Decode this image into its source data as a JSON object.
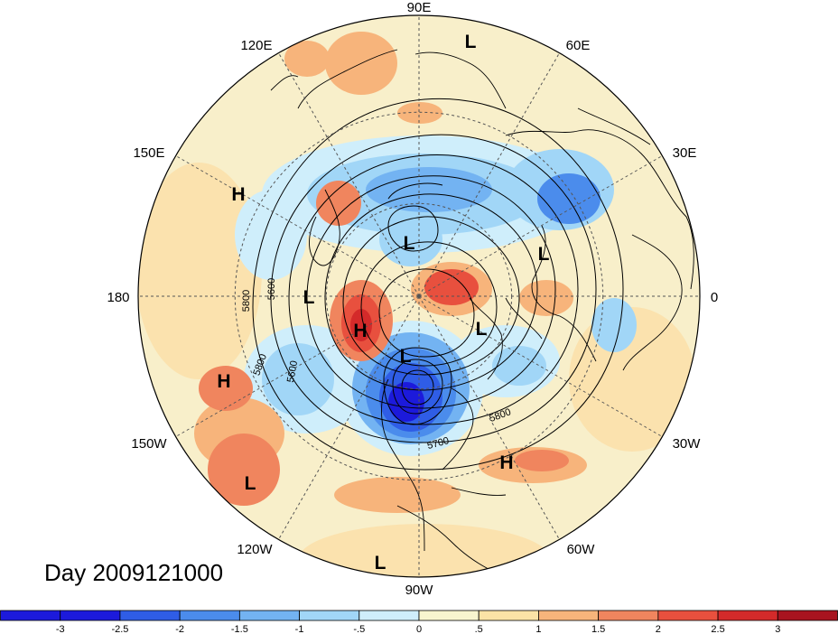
{
  "title": "Day 2009121000",
  "longitude_labels": [
    {
      "key": "90E",
      "text": "90E",
      "angle": 90
    },
    {
      "key": "120E",
      "text": "120E",
      "angle": 120
    },
    {
      "key": "60E",
      "text": "60E",
      "angle": 60
    },
    {
      "key": "150E",
      "text": "150E",
      "angle": 150
    },
    {
      "key": "30E",
      "text": "30E",
      "angle": 30
    },
    {
      "key": "180",
      "text": "180",
      "angle": 180
    },
    {
      "key": "0",
      "text": "0",
      "angle": 0
    },
    {
      "key": "150W",
      "text": "150W",
      "angle": 210
    },
    {
      "key": "30W",
      "text": "30W",
      "angle": 330
    },
    {
      "key": "120W",
      "text": "120W",
      "angle": 240
    },
    {
      "key": "60W",
      "text": "60W",
      "angle": 300
    },
    {
      "key": "90W",
      "text": "90W",
      "angle": 270
    }
  ],
  "pressure_centers": [
    "L",
    "H",
    "L",
    "L",
    "L",
    "H",
    "L",
    "H",
    "L",
    "H",
    "L",
    "L"
  ],
  "contour_labels": [
    "5800",
    "5600",
    "5800",
    "5600",
    "5800",
    "5700"
  ],
  "colorbar": {
    "levels": [
      "-3",
      "-2.5",
      "-2",
      "-1.5",
      "-1",
      "-.5",
      "0",
      ".5",
      "1",
      "1.5",
      "2",
      "2.5",
      "3"
    ],
    "colors": [
      "#1c1adb",
      "#2f5de6",
      "#4b8cec",
      "#73b3f2",
      "#a1d6f7",
      "#cfeefb",
      "#f8f5cf",
      "#fbe3a6",
      "#f7b47b",
      "#f0855e",
      "#e8503e",
      "#d42a2a",
      "#a8141f"
    ]
  }
}
